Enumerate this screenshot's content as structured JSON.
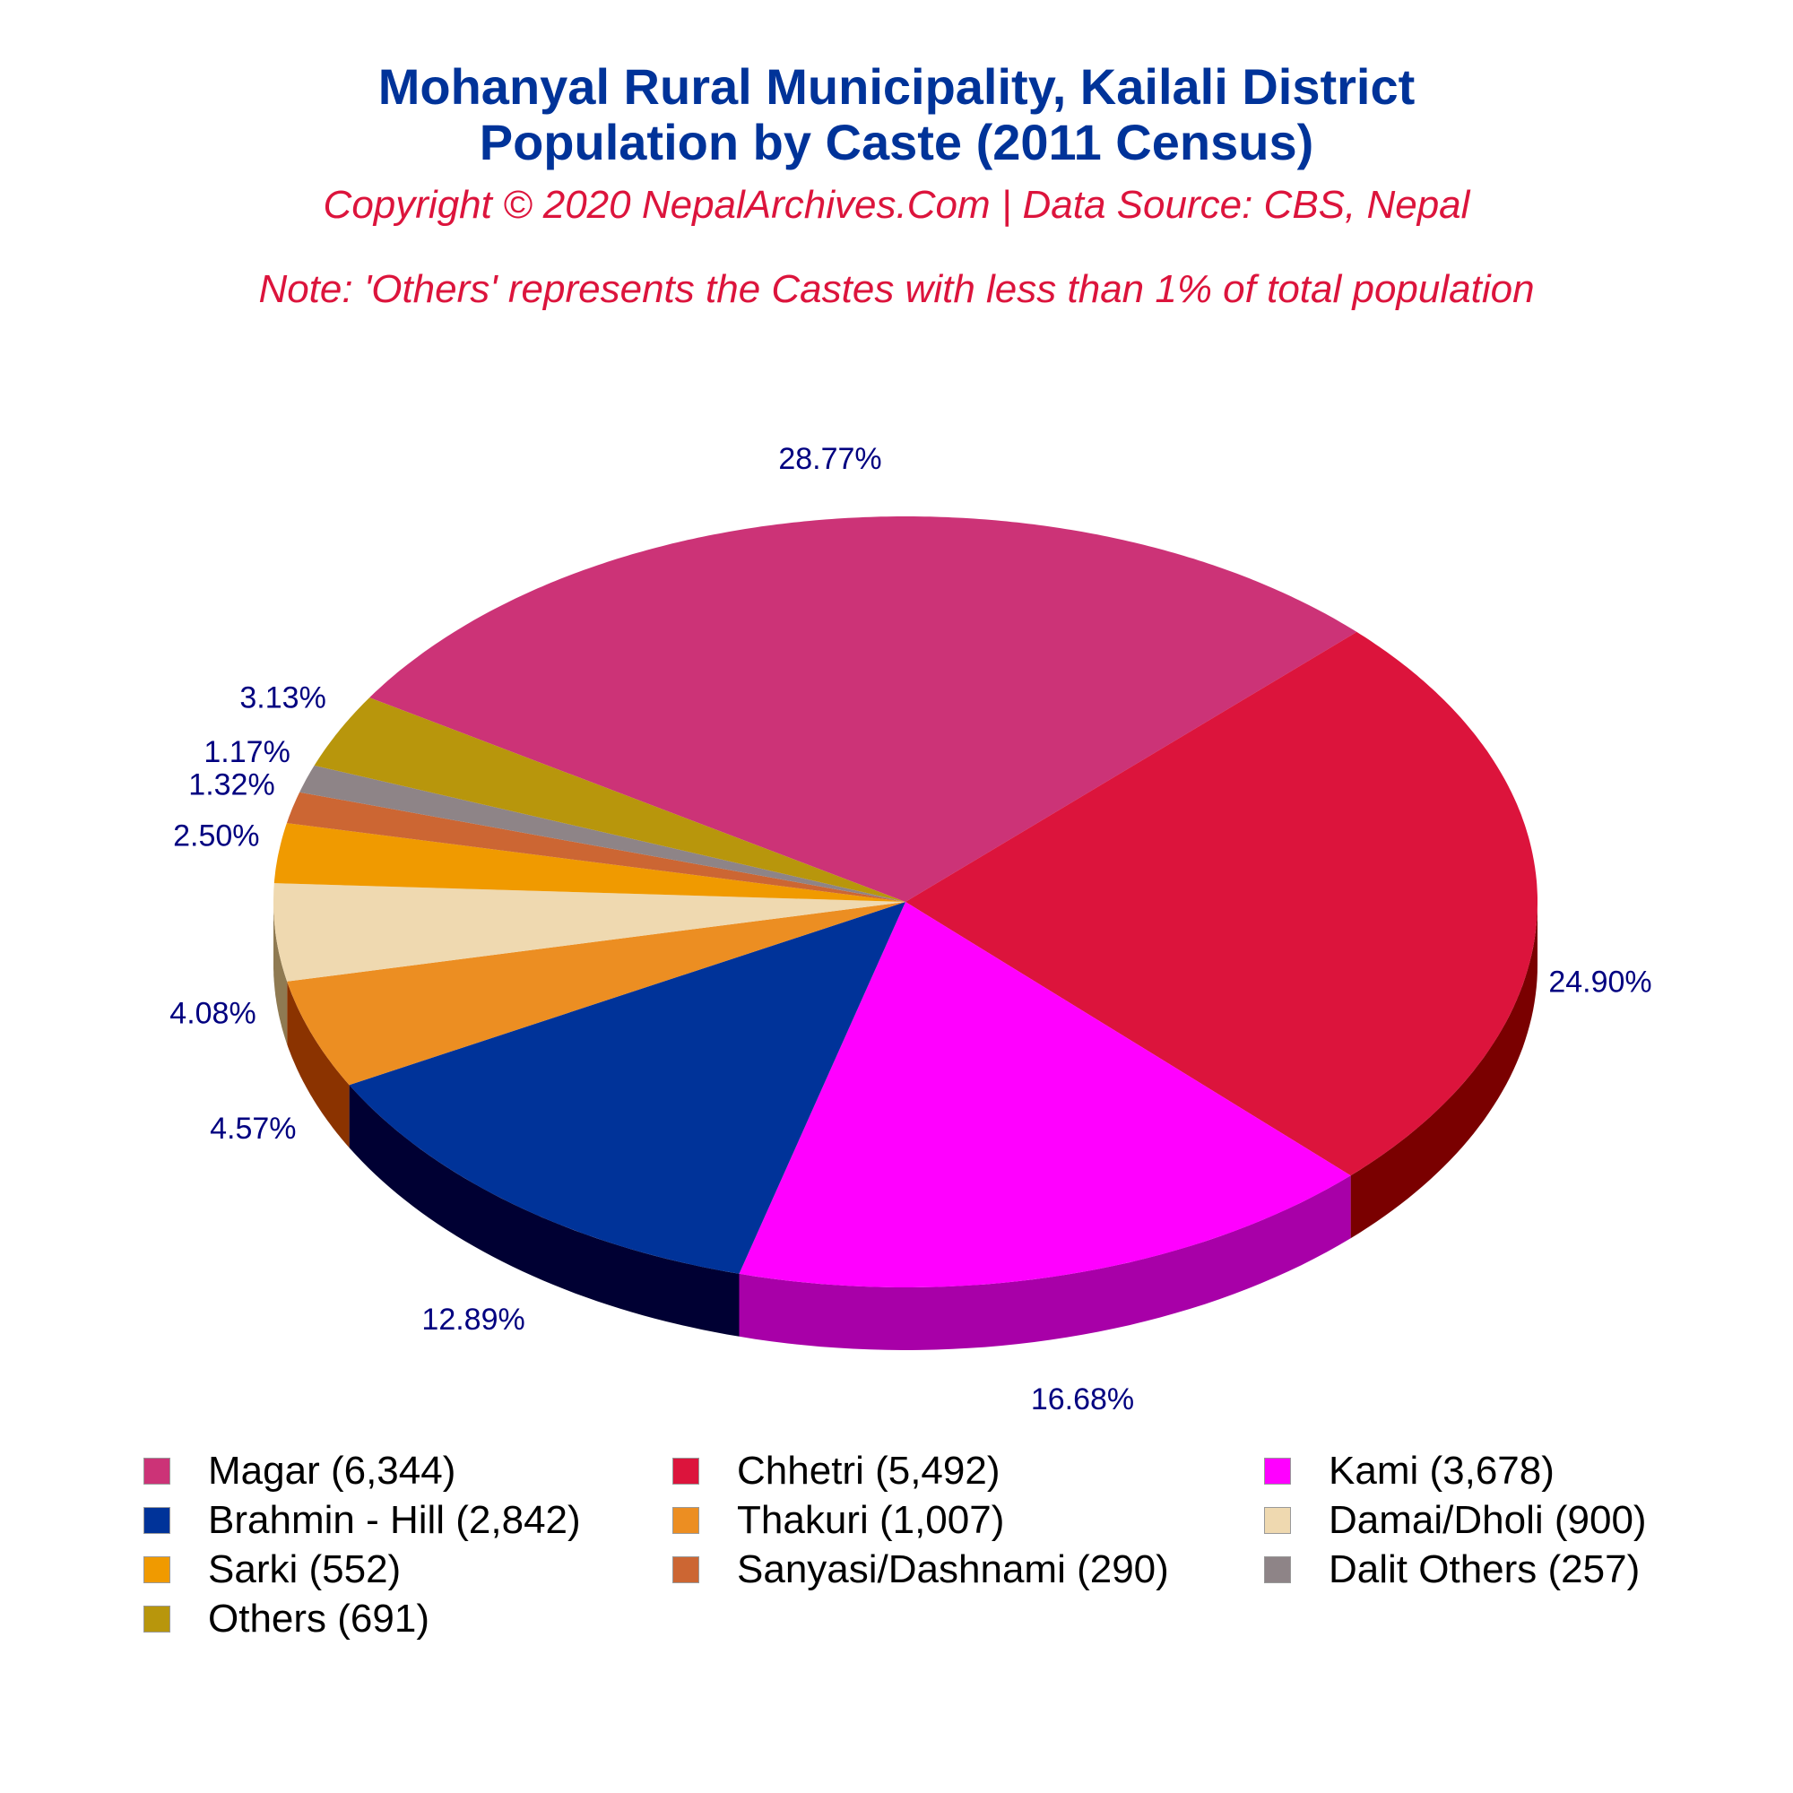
{
  "chart_data": {
    "type": "pie",
    "title": "Mohanyal Rural Municipality, Kailali District",
    "subtitle": "Population by Caste (2011 Census)",
    "copyright": "Copyright © 2020 NepalArchives.Com | Data Source: CBS, Nepal",
    "note": "Note: 'Others' represents the Castes with less than 1% of total population",
    "legend_position": "bottom",
    "slices": [
      {
        "label": "Magar",
        "value": 6344,
        "percent_label": "28.77%",
        "legend": "Magar (6,344)",
        "color": "#cc3377",
        "side_color": "#8a1f50"
      },
      {
        "label": "Chhetri",
        "value": 5492,
        "percent_label": "24.90%",
        "legend": "Chhetri (5,492)",
        "color": "#dc143c",
        "side_color": "#7a0000"
      },
      {
        "label": "Kami",
        "value": 3678,
        "percent_label": "16.68%",
        "legend": "Kami (3,678)",
        "color": "#ff00ff",
        "side_color": "#a800a8"
      },
      {
        "label": "Brahmin - Hill",
        "value": 2842,
        "percent_label": "12.89%",
        "legend": "Brahmin - Hill (2,842)",
        "color": "#003399",
        "side_color": "#000033"
      },
      {
        "label": "Thakuri",
        "value": 1007,
        "percent_label": "4.57%",
        "legend": "Thakuri (1,007)",
        "color": "#ec8e22",
        "side_color": "#8b3300"
      },
      {
        "label": "Damai/Dholi",
        "value": 900,
        "percent_label": "4.08%",
        "legend": "Damai/Dholi (900)",
        "color": "#efd9b0",
        "side_color": "#8f7a52"
      },
      {
        "label": "Sarki",
        "value": 552,
        "percent_label": "2.50%",
        "legend": "Sarki (552)",
        "color": "#f09a00",
        "side_color": "#8a5500"
      },
      {
        "label": "Sanyasi/Dashnami",
        "value": 290,
        "percent_label": "1.32%",
        "legend": "Sanyasi/Dashnami (290)",
        "color": "#cc6633",
        "side_color": "#6e3318"
      },
      {
        "label": "Dalit Others",
        "value": 257,
        "percent_label": "1.17%",
        "legend": "Dalit Others (257)",
        "color": "#8e8487",
        "side_color": "#4e4749"
      },
      {
        "label": "Others",
        "value": 691,
        "percent_label": "3.13%",
        "legend": "Others (691)",
        "color": "#b8960c",
        "side_color": "#6a5606"
      }
    ],
    "label_color": "#000080"
  }
}
